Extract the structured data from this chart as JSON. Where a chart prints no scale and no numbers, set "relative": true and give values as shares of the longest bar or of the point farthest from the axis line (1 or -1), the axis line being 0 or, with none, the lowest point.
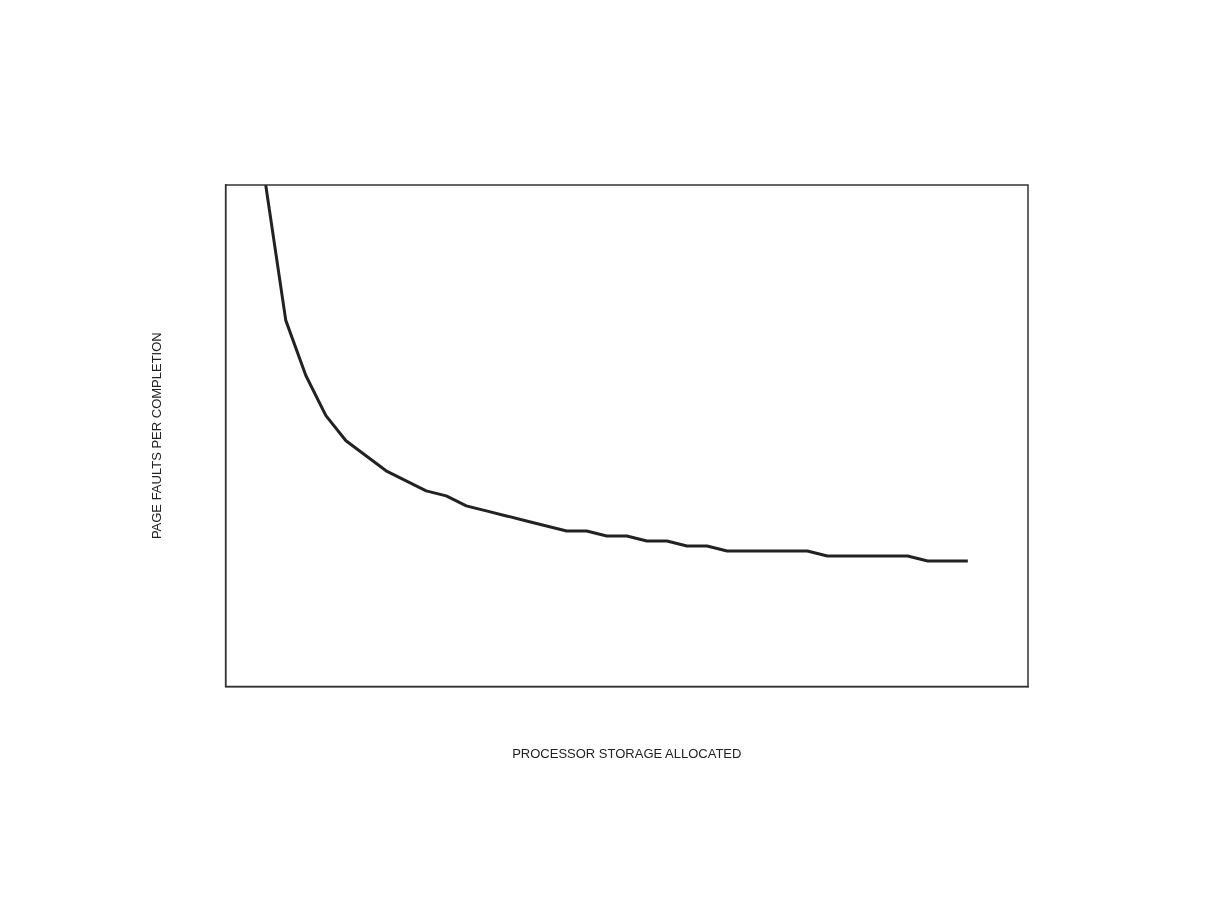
{
  "chart_data": {
    "type": "line",
    "relative": true,
    "xlabel": "PROCESSOR STORAGE ALLOCATED",
    "ylabel": "PAGE FAULTS PER COMPLETION",
    "marker": "none",
    "categories": [
      null,
      null,
      null,
      null,
      null,
      null,
      null,
      null,
      null,
      null,
      null,
      null,
      null,
      null,
      null,
      null,
      null,
      null,
      null,
      null,
      null,
      null,
      null,
      null,
      null,
      null,
      null,
      null,
      null,
      null,
      null,
      null,
      null,
      null,
      null,
      null,
      null,
      null,
      null,
      null,
      null
    ],
    "series": [
      {
        "color": "#222222",
        "values": [
          null,
          null,
          1.0,
          0.73,
          0.62,
          0.54,
          0.49,
          0.46,
          0.43,
          0.41,
          0.39,
          0.38,
          0.36,
          0.35,
          0.34,
          0.33,
          0.32,
          0.31,
          0.31,
          0.3,
          0.3,
          0.29,
          0.29,
          0.28,
          0.28,
          0.27,
          0.27,
          0.27,
          0.27,
          0.27,
          0.26,
          0.26,
          0.26,
          0.26,
          0.26,
          0.25,
          0.25,
          0.25,
          null,
          null,
          null
        ]
      }
    ]
  }
}
